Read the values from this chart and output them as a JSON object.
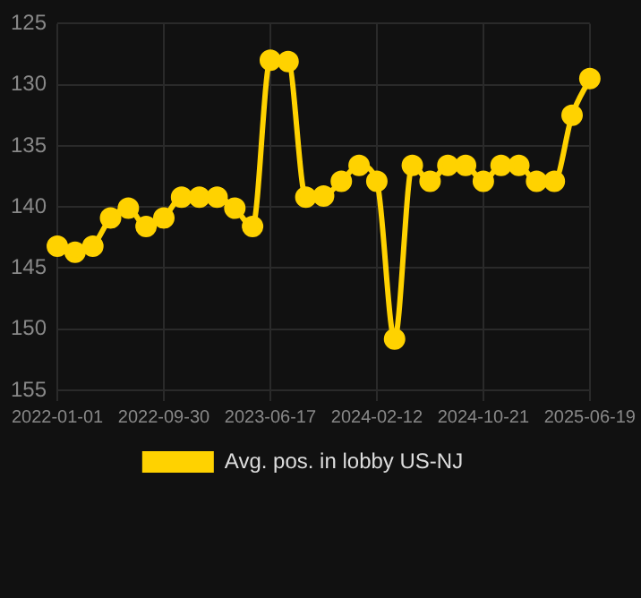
{
  "chart_data": {
    "type": "line",
    "categories": [
      "2022-01-01",
      null,
      null,
      null,
      null,
      null,
      "2022-09-30",
      null,
      null,
      null,
      null,
      null,
      "2023-06-17",
      null,
      null,
      null,
      null,
      null,
      "2024-02-12",
      null,
      null,
      null,
      null,
      null,
      "2024-10-21",
      null,
      null,
      null,
      null,
      null,
      "2025-06-19"
    ],
    "series": [
      {
        "name": "Avg. pos. in lobby US-NJ",
        "color": "#ffd200",
        "values": [
          143.2,
          143.7,
          143.2,
          140.9,
          140.1,
          141.6,
          140.9,
          139.2,
          139.2,
          139.2,
          140.1,
          141.6,
          128.0,
          128.1,
          139.2,
          139.1,
          137.9,
          136.6,
          137.9,
          150.8,
          136.6,
          137.9,
          136.6,
          136.6,
          137.9,
          136.6,
          136.6,
          137.9,
          137.9,
          132.5,
          129.5
        ]
      }
    ],
    "ylim": [
      155,
      125
    ],
    "yticks": [
      125,
      130,
      135,
      140,
      145,
      150,
      155
    ],
    "grid": true,
    "legend": "bottom",
    "marker": "circle",
    "line_style": "solid"
  }
}
